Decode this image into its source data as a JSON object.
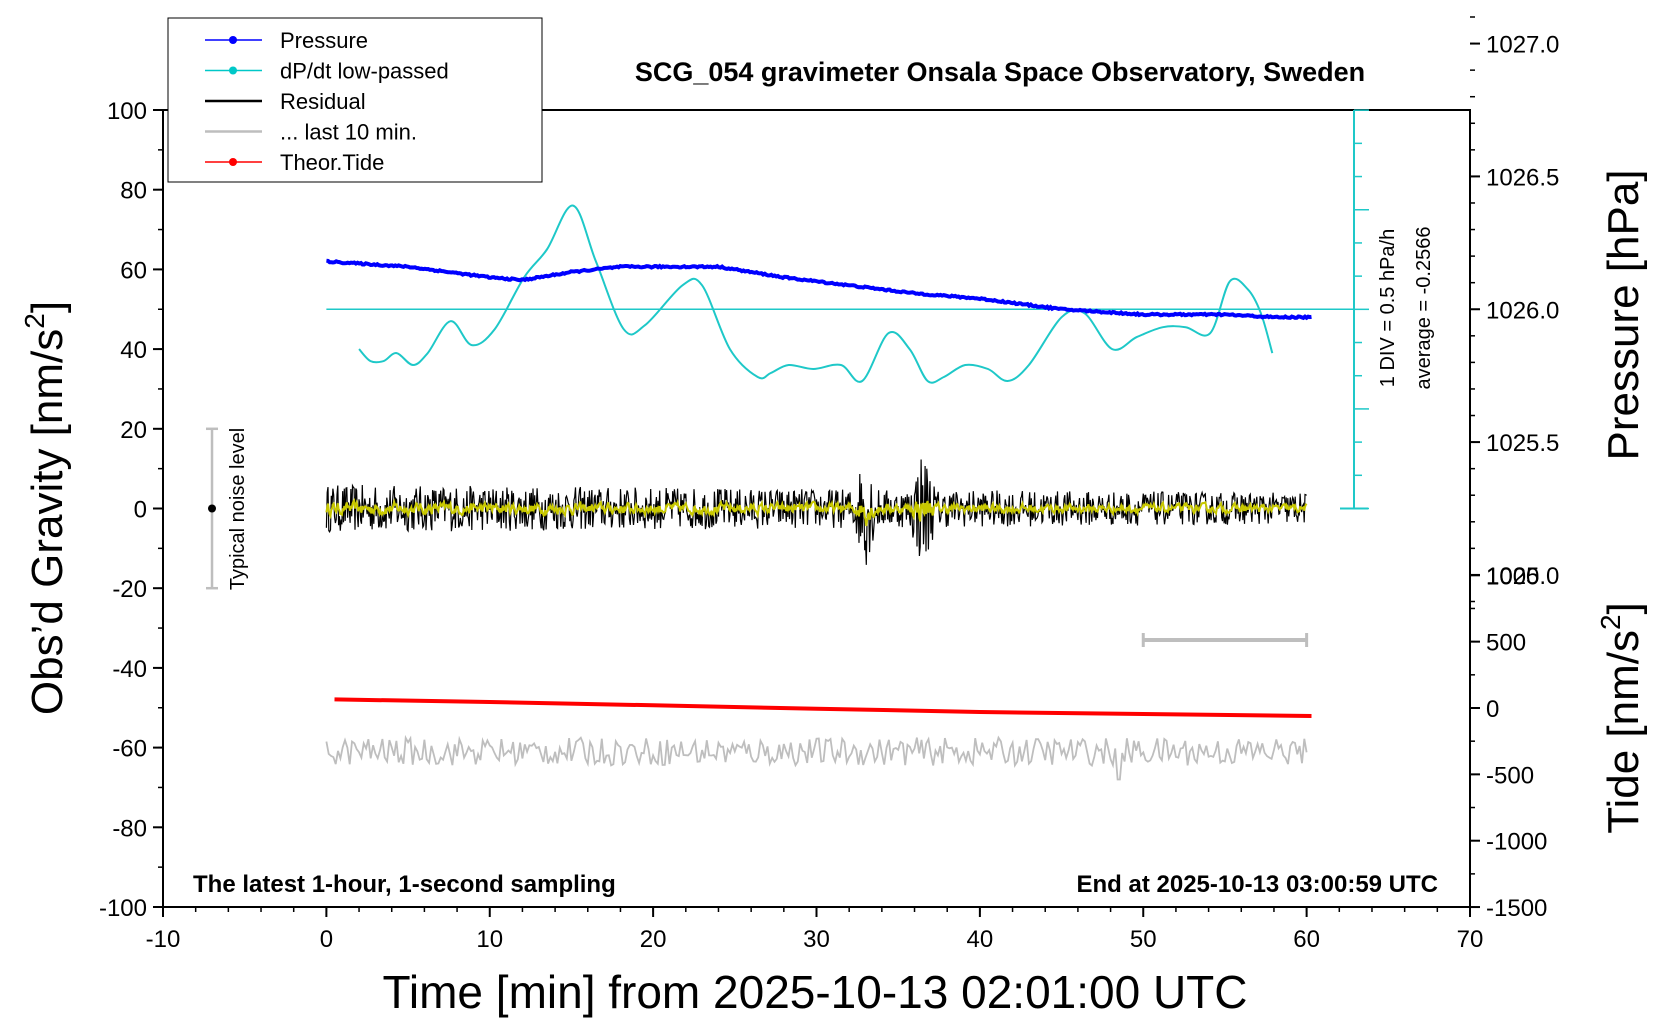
{
  "chart_data": {
    "type": "line",
    "title": "SCG_054 gravimeter Onsala Space Observatory, Sweden",
    "xlabel": "Time [min] from 2025-10-13 02:01:00 UTC",
    "ylabel_left": "Obs’d Gravity [nm/s",
    "ylabel_left_sup": "2",
    "ylabel_left_close": "]",
    "ylabel_right_pressure": "Pressure [hPa]",
    "ylabel_right_tide": "Tide [nm/s",
    "ylabel_right_tide_sup": "2",
    "ylabel_right_tide_close": "]",
    "xlim": [
      -10,
      70
    ],
    "ylim": [
      -100,
      100
    ],
    "x_ticks": [
      "-10",
      "0",
      "10",
      "20",
      "30",
      "40",
      "50",
      "60",
      "70"
    ],
    "y_ticks": [
      "100",
      "80",
      "60",
      "40",
      "20",
      "0",
      "-20",
      "-40",
      "-60",
      "-80",
      "-100"
    ],
    "pressure_ticks": [
      "1027.0",
      "1026.5",
      "1026.0",
      "1025.5",
      "1025.0"
    ],
    "tide_ticks": [
      "1000",
      "500",
      "0",
      "-500",
      "-1000",
      "-1500"
    ],
    "dpdt_note_1": "1 DIV = 0.5 hPa/h",
    "dpdt_note_2": "average = -0.2566",
    "noise_label": "Typical noise level",
    "bottom_left_note": "The latest 1-hour, 1-second sampling",
    "bottom_right_note": "End at 2025-10-13 03:00:59 UTC",
    "legend": [
      {
        "label": "Pressure",
        "color": "#0000ff",
        "marker": true
      },
      {
        "label": "dP/dt low-passed",
        "color": "#00c8c8",
        "marker": true
      },
      {
        "label": "Residual",
        "color": "#000000",
        "marker": false
      },
      {
        "label": "... last 10 min.",
        "color": "#bebebe",
        "marker": false
      },
      {
        "label": "Theor.Tide",
        "color": "#ff0000",
        "marker": true
      }
    ],
    "colors": {
      "pressure": "#0000ff",
      "dpdt": "#1ec8c8",
      "residual": "#000000",
      "residual_smooth": "#c8c800",
      "last10": "#bebebe",
      "tide": "#ff0000",
      "axis": "#000000"
    },
    "series": {
      "pressure_hpa": {
        "x": [
          0,
          5,
          10,
          12,
          15,
          18,
          22,
          24,
          28,
          32,
          36,
          40,
          45,
          50,
          55,
          58,
          60.3
        ],
        "y": [
          1026.18,
          1026.16,
          1026.12,
          1026.11,
          1026.14,
          1026.16,
          1026.16,
          1026.16,
          1026.12,
          1026.09,
          1026.06,
          1026.04,
          1026.0,
          1025.98,
          1025.98,
          1025.97,
          1025.97
        ]
      },
      "dpdt_gravity_units": {
        "x": [
          2,
          2.7,
          3.5,
          4.3,
          5.3,
          6.2,
          7.6,
          8.9,
          10.3,
          12.1,
          13.5,
          15.1,
          16.5,
          18.2,
          19.5,
          21.8,
          23,
          24.7,
          26.4,
          27.2,
          28.3,
          29.8,
          31.5,
          32.8,
          34.4,
          35.7,
          36.8,
          37.8,
          39.1,
          40.5,
          41.7,
          43,
          45,
          46.4,
          48.1,
          49.6,
          51.2,
          52.6,
          54.1,
          55.3,
          56.4,
          57.2,
          57.9
        ],
        "y": [
          40,
          37,
          37,
          39,
          36,
          39,
          47,
          41,
          45,
          58,
          65,
          76,
          62,
          45,
          46,
          56,
          56,
          40,
          33,
          34,
          36,
          35,
          36,
          32,
          44,
          40,
          32,
          33,
          36,
          35,
          32,
          36,
          48,
          49,
          40,
          43,
          45.5,
          45.5,
          44,
          57,
          55,
          49,
          39
        ]
      },
      "tide_nm_s2": {
        "x": [
          0.5,
          10,
          20,
          30,
          40,
          50,
          60.3
        ],
        "y": [
          65,
          45,
          20,
          -5,
          -30,
          -45,
          -60
        ]
      },
      "residual_gravity_units": {
        "x_range": [
          0,
          60
        ],
        "noise_amplitude": 6,
        "peak_events": [
          {
            "x": 33,
            "amplitude": 15
          },
          {
            "x": 36.5,
            "amplitude": 16
          }
        ]
      },
      "last10_gravity_units": {
        "x_range": [
          0,
          60
        ],
        "center": -61,
        "amplitude": 3.5,
        "spike_at": 48.5,
        "spike_value": -68
      },
      "noise_bar": {
        "x": -7,
        "y_low": -20,
        "y_high": 20,
        "center": 0
      },
      "last10_bracket": {
        "x_start": 50,
        "x_end": 60,
        "y": -33
      }
    }
  }
}
